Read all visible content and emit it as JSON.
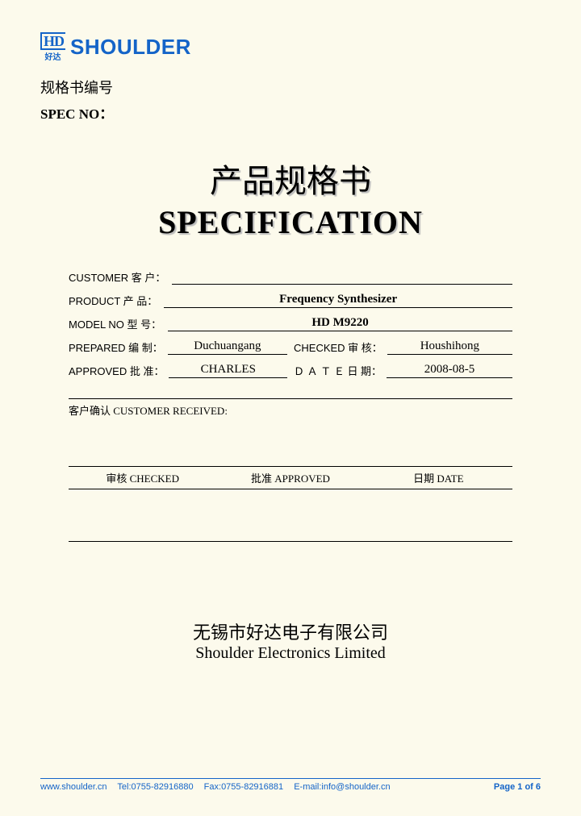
{
  "logo": {
    "hd": "HD",
    "cn": "好达",
    "text": "SHOULDER"
  },
  "spec_no": {
    "cn": "规格书编号",
    "en": "SPEC NO："
  },
  "title": {
    "cn": "产品规格书",
    "en": "SPECIFICATION"
  },
  "fields": {
    "customer_label": "CUSTOMER 客 户：",
    "customer_value": "",
    "product_label": "PRODUCT  产 品：",
    "product_value": "Frequency Synthesizer",
    "model_label": "MODEL NO 型 号：",
    "model_value": "HD M9220",
    "prepared_label": "PREPARED 编 制：",
    "prepared_value": "Duchuangang",
    "checked_label": "CHECKED 审 核：",
    "checked_value": "Houshihong",
    "approved_label": "APPROVED 批 准：",
    "approved_value": "CHARLES",
    "date_label": "Ｄ Ａ Ｔ Ｅ 日 期：",
    "date_value": "2008-08-5"
  },
  "customer_received": "客户确认 CUSTOMER RECEIVED:",
  "sig_table": {
    "checked": "审核 CHECKED",
    "approved": "批准 APPROVED",
    "date": "日期 DATE"
  },
  "company": {
    "cn": "无锡市好达电子有限公司",
    "en": "Shoulder Electronics Limited"
  },
  "footer": {
    "web": "www.shoulder.cn",
    "tel": "Tel:0755-82916880",
    "fax": "Fax:0755-82916881",
    "email": "E-mail:info@shoulder.cn",
    "page": "Page 1 of 6"
  },
  "colors": {
    "brand": "#1464c8",
    "background": "#fcfaec"
  }
}
